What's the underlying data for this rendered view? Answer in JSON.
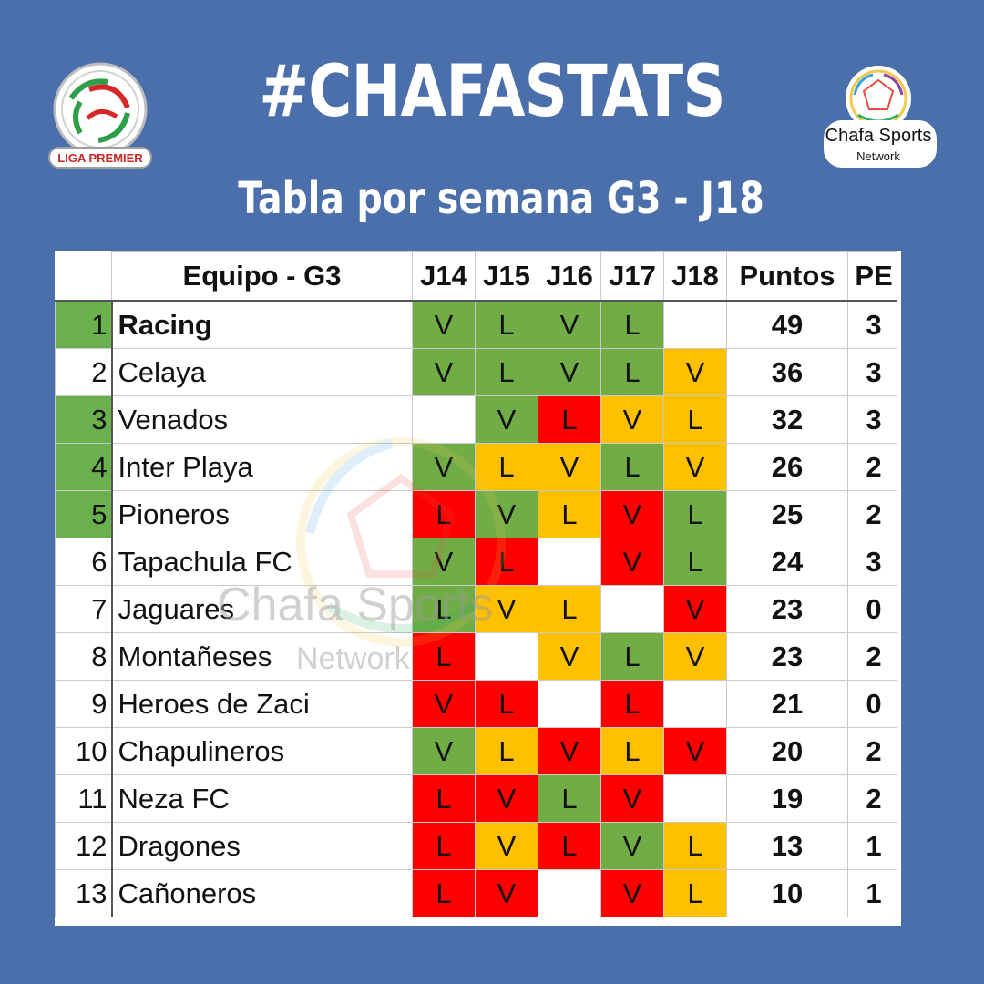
{
  "header": {
    "title": "#CHAFASTATS",
    "subtitle": "Tabla por semana G3 - J18"
  },
  "logos": {
    "left": {
      "text": "LIGA PREMIER",
      "icon": "liga-premier-logo"
    },
    "right": {
      "line1": "Chafa Sports",
      "line2": "Network",
      "icon": "chafa-sports-logo"
    }
  },
  "watermark": {
    "line1": "Chafa Sports",
    "line2": "Network"
  },
  "colors": {
    "background": "#4a6fab",
    "green": "#70ad47",
    "orange": "#ffc000",
    "red": "#ff0000"
  },
  "table": {
    "headers": {
      "team": "Equipo - G3",
      "weeks": [
        "J14",
        "J15",
        "J16",
        "J17",
        "J18"
      ],
      "points": "Puntos",
      "pe": "PE"
    },
    "rows": [
      {
        "rank": "1",
        "team": "Racing",
        "top": true,
        "bold": true,
        "results": [
          [
            "V",
            "g"
          ],
          [
            "L",
            "g"
          ],
          [
            "V",
            "g"
          ],
          [
            "L",
            "g"
          ],
          [
            "",
            ""
          ]
        ],
        "points": "49",
        "pe": "3"
      },
      {
        "rank": "2",
        "team": "Celaya",
        "top": false,
        "bold": false,
        "results": [
          [
            "V",
            "g"
          ],
          [
            "L",
            "g"
          ],
          [
            "V",
            "g"
          ],
          [
            "L",
            "g"
          ],
          [
            "V",
            "o"
          ]
        ],
        "points": "36",
        "pe": "3"
      },
      {
        "rank": "3",
        "team": "Venados",
        "top": true,
        "bold": false,
        "results": [
          [
            "",
            ""
          ],
          [
            "V",
            "g"
          ],
          [
            "L",
            "r"
          ],
          [
            "V",
            "o"
          ],
          [
            "L",
            "o"
          ]
        ],
        "points": "32",
        "pe": "3"
      },
      {
        "rank": "4",
        "team": "Inter Playa",
        "top": true,
        "bold": false,
        "results": [
          [
            "V",
            "g"
          ],
          [
            "L",
            "o"
          ],
          [
            "V",
            "o"
          ],
          [
            "L",
            "g"
          ],
          [
            "V",
            "o"
          ]
        ],
        "points": "26",
        "pe": "2"
      },
      {
        "rank": "5",
        "team": "Pioneros",
        "top": true,
        "bold": false,
        "results": [
          [
            "L",
            "r"
          ],
          [
            "V",
            "g"
          ],
          [
            "L",
            "o"
          ],
          [
            "V",
            "r"
          ],
          [
            "L",
            "g"
          ]
        ],
        "points": "25",
        "pe": "2"
      },
      {
        "rank": "6",
        "team": "Tapachula FC",
        "top": false,
        "bold": false,
        "results": [
          [
            "V",
            "g"
          ],
          [
            "L",
            "r"
          ],
          [
            "",
            ""
          ],
          [
            "V",
            "r"
          ],
          [
            "L",
            "g"
          ]
        ],
        "points": "24",
        "pe": "3"
      },
      {
        "rank": "7",
        "team": "Jaguares",
        "top": false,
        "bold": false,
        "results": [
          [
            "L",
            "g"
          ],
          [
            "V",
            "o"
          ],
          [
            "L",
            "o"
          ],
          [
            "",
            ""
          ],
          [
            "V",
            "r"
          ]
        ],
        "points": "23",
        "pe": "0"
      },
      {
        "rank": "8",
        "team": "Montañeses",
        "top": false,
        "bold": false,
        "results": [
          [
            "L",
            "r"
          ],
          [
            "",
            ""
          ],
          [
            "V",
            "o"
          ],
          [
            "L",
            "g"
          ],
          [
            "V",
            "o"
          ]
        ],
        "points": "23",
        "pe": "2"
      },
      {
        "rank": "9",
        "team": "Heroes de Zaci",
        "top": false,
        "bold": false,
        "results": [
          [
            "V",
            "r"
          ],
          [
            "L",
            "r"
          ],
          [
            "",
            ""
          ],
          [
            "L",
            "r"
          ],
          [
            "",
            ""
          ]
        ],
        "points": "21",
        "pe": "0"
      },
      {
        "rank": "10",
        "team": "Chapulineros",
        "top": false,
        "bold": false,
        "results": [
          [
            "V",
            "g"
          ],
          [
            "L",
            "o"
          ],
          [
            "V",
            "r"
          ],
          [
            "L",
            "o"
          ],
          [
            "V",
            "r"
          ]
        ],
        "points": "20",
        "pe": "2"
      },
      {
        "rank": "11",
        "team": "Neza FC",
        "top": false,
        "bold": false,
        "results": [
          [
            "L",
            "r"
          ],
          [
            "V",
            "r"
          ],
          [
            "L",
            "g"
          ],
          [
            "V",
            "r"
          ],
          [
            "",
            ""
          ]
        ],
        "points": "19",
        "pe": "2"
      },
      {
        "rank": "12",
        "team": "Dragones",
        "top": false,
        "bold": false,
        "results": [
          [
            "L",
            "r"
          ],
          [
            "V",
            "o"
          ],
          [
            "L",
            "r"
          ],
          [
            "V",
            "g"
          ],
          [
            "L",
            "o"
          ]
        ],
        "points": "13",
        "pe": "1"
      },
      {
        "rank": "13",
        "team": "Cañoneros",
        "top": false,
        "bold": false,
        "results": [
          [
            "L",
            "r"
          ],
          [
            "V",
            "r"
          ],
          [
            "",
            ""
          ],
          [
            "V",
            "r"
          ],
          [
            "L",
            "o"
          ]
        ],
        "points": "10",
        "pe": "1"
      }
    ]
  }
}
